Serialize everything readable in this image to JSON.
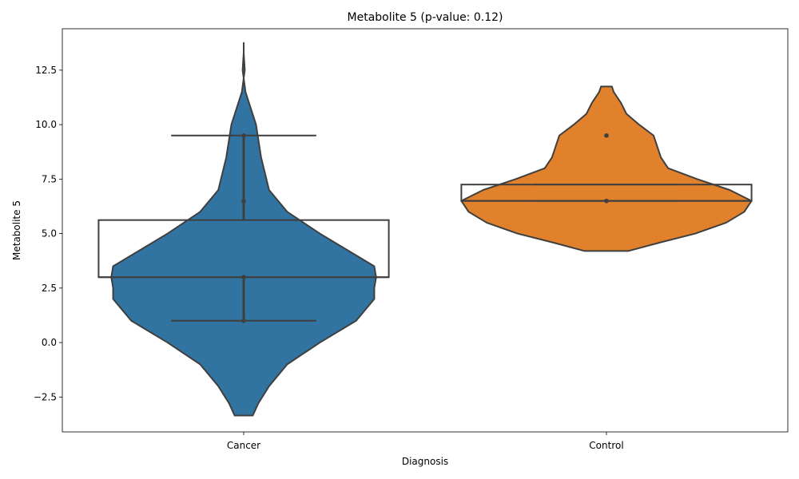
{
  "chart_data": {
    "type": "violin",
    "title": "Metabolite 5 (p-value: 0.12)",
    "xlabel": "Diagnosis",
    "ylabel": "Metabolite 5",
    "categories": [
      "Cancer",
      "Control"
    ],
    "ylim": [
      -4.1,
      14.4
    ],
    "yticks": [
      -2.5,
      0.0,
      2.5,
      5.0,
      7.5,
      10.0,
      12.5
    ],
    "ytick_labels": [
      "−2.5",
      "0.0",
      "2.5",
      "5.0",
      "7.5",
      "10.0",
      "12.5"
    ],
    "grid": false,
    "legend": "none",
    "colors": {
      "Cancer": "#3274a1",
      "Control": "#e1812c",
      "outline": "#3f3f3f"
    },
    "violins": [
      {
        "category": "Cancer",
        "profile": [
          {
            "y": -3.35,
            "w": 0.025
          },
          {
            "y": -2.8,
            "w": 0.04
          },
          {
            "y": -2.0,
            "w": 0.07
          },
          {
            "y": -1.0,
            "w": 0.12
          },
          {
            "y": 0.0,
            "w": 0.21
          },
          {
            "y": 1.0,
            "w": 0.31
          },
          {
            "y": 2.0,
            "w": 0.36
          },
          {
            "y": 2.5,
            "w": 0.36
          },
          {
            "y": 3.0,
            "w": 0.365
          },
          {
            "y": 3.5,
            "w": 0.36
          },
          {
            "y": 4.0,
            "w": 0.31
          },
          {
            "y": 5.0,
            "w": 0.21
          },
          {
            "y": 6.0,
            "w": 0.12
          },
          {
            "y": 7.0,
            "w": 0.07
          },
          {
            "y": 8.5,
            "w": 0.048
          },
          {
            "y": 10.0,
            "w": 0.034
          },
          {
            "y": 11.5,
            "w": 0.005
          },
          {
            "y": 12.5,
            "w": -0.003
          },
          {
            "y": 13.3,
            "w": 0.0
          },
          {
            "y": 13.75,
            "w": 0.0
          }
        ]
      },
      {
        "category": "Control",
        "profile": [
          {
            "y": 4.2,
            "w": 0.06
          },
          {
            "y": 4.6,
            "w": 0.15
          },
          {
            "y": 5.0,
            "w": 0.245
          },
          {
            "y": 5.5,
            "w": 0.33
          },
          {
            "y": 6.0,
            "w": 0.38
          },
          {
            "y": 6.5,
            "w": 0.4
          },
          {
            "y": 7.0,
            "w": 0.34
          },
          {
            "y": 7.5,
            "w": 0.25
          },
          {
            "y": 8.0,
            "w": 0.17
          },
          {
            "y": 8.5,
            "w": 0.15
          },
          {
            "y": 9.0,
            "w": 0.14
          },
          {
            "y": 9.5,
            "w": 0.13
          },
          {
            "y": 10.0,
            "w": 0.09
          },
          {
            "y": 10.5,
            "w": 0.055
          },
          {
            "y": 11.0,
            "w": 0.04
          },
          {
            "y": 11.5,
            "w": 0.02
          },
          {
            "y": 11.75,
            "w": 0.015
          }
        ]
      }
    ],
    "boxes": [
      {
        "category": "Cancer",
        "q1": 3.0,
        "median": 3.0,
        "q3": 5.62,
        "whisker_low": 1.0,
        "whisker_high": 9.5
      },
      {
        "category": "Control",
        "q1": 6.5,
        "median": 6.5,
        "q3": 7.25,
        "whisker_low": 6.5,
        "whisker_high": 7.25
      }
    ],
    "points": [
      {
        "category": "Cancer",
        "values": [
          1.0,
          3.0,
          6.5,
          9.5
        ]
      },
      {
        "category": "Control",
        "values": [
          6.5,
          9.5
        ]
      }
    ],
    "point_ranges": [
      {
        "category": "Cancer",
        "low": 1.0,
        "high": 3.0
      },
      {
        "category": "Cancer",
        "low": 5.62,
        "high": 9.5
      }
    ]
  }
}
